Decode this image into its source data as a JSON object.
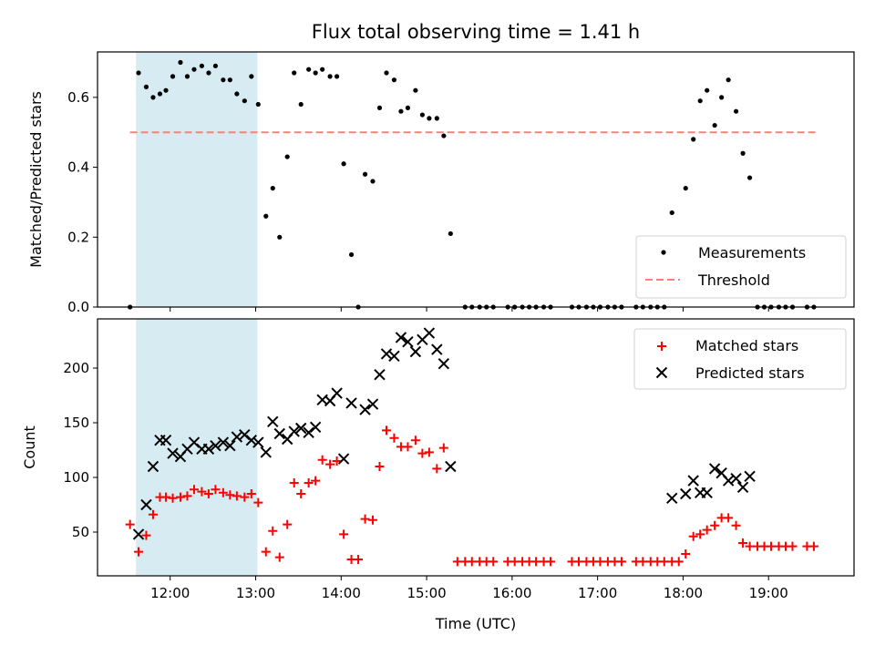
{
  "figure": {
    "title": "Flux total observing time = 1.41 h"
  },
  "chart_data": [
    {
      "type": "scatter",
      "panel": "top",
      "xlabel": "",
      "ylabel": "Matched/Predicted stars",
      "xlim_hours": [
        11.15,
        20.0
      ],
      "ylim": [
        0,
        0.73
      ],
      "yticks": [
        0.0,
        0.2,
        0.4,
        0.6
      ],
      "shaded_interval": [
        11.6,
        13.02
      ],
      "threshold": {
        "name": "Threshold",
        "y": 0.5,
        "x_range": [
          11.53,
          19.55
        ],
        "color": "#ff7f7f"
      },
      "legend": {
        "placement": "lower-right",
        "entries": [
          "Measurements",
          "Threshold"
        ]
      },
      "series": [
        {
          "name": "Measurements",
          "color": "#000000",
          "points": [
            [
              11.53,
              0.0
            ],
            [
              11.63,
              0.67
            ],
            [
              11.72,
              0.63
            ],
            [
              11.8,
              0.6
            ],
            [
              11.88,
              0.61
            ],
            [
              11.95,
              0.62
            ],
            [
              12.03,
              0.66
            ],
            [
              12.12,
              0.7
            ],
            [
              12.2,
              0.66
            ],
            [
              12.28,
              0.68
            ],
            [
              12.37,
              0.69
            ],
            [
              12.45,
              0.67
            ],
            [
              12.53,
              0.69
            ],
            [
              12.62,
              0.65
            ],
            [
              12.7,
              0.65
            ],
            [
              12.78,
              0.61
            ],
            [
              12.87,
              0.59
            ],
            [
              12.95,
              0.66
            ],
            [
              13.03,
              0.58
            ],
            [
              13.12,
              0.26
            ],
            [
              13.2,
              0.34
            ],
            [
              13.28,
              0.2
            ],
            [
              13.37,
              0.43
            ],
            [
              13.45,
              0.67
            ],
            [
              13.53,
              0.58
            ],
            [
              13.62,
              0.68
            ],
            [
              13.7,
              0.67
            ],
            [
              13.78,
              0.68
            ],
            [
              13.87,
              0.66
            ],
            [
              13.95,
              0.66
            ],
            [
              14.03,
              0.41
            ],
            [
              14.12,
              0.15
            ],
            [
              14.2,
              0.0
            ],
            [
              14.28,
              0.38
            ],
            [
              14.37,
              0.36
            ],
            [
              14.45,
              0.57
            ],
            [
              14.53,
              0.67
            ],
            [
              14.62,
              0.65
            ],
            [
              14.7,
              0.56
            ],
            [
              14.78,
              0.57
            ],
            [
              14.87,
              0.62
            ],
            [
              14.95,
              0.55
            ],
            [
              15.03,
              0.54
            ],
            [
              15.12,
              0.54
            ],
            [
              15.2,
              0.49
            ],
            [
              15.28,
              0.21
            ],
            [
              15.45,
              0.0
            ],
            [
              15.53,
              0.0
            ],
            [
              15.62,
              0.0
            ],
            [
              15.7,
              0.0
            ],
            [
              15.78,
              0.0
            ],
            [
              15.95,
              0.0
            ],
            [
              16.03,
              0.0
            ],
            [
              16.12,
              0.0
            ],
            [
              16.2,
              0.0
            ],
            [
              16.28,
              0.0
            ],
            [
              16.37,
              0.0
            ],
            [
              16.45,
              0.0
            ],
            [
              16.7,
              0.0
            ],
            [
              16.78,
              0.0
            ],
            [
              16.87,
              0.0
            ],
            [
              16.95,
              0.0
            ],
            [
              17.03,
              0.0
            ],
            [
              17.12,
              0.0
            ],
            [
              17.2,
              0.0
            ],
            [
              17.28,
              0.0
            ],
            [
              17.45,
              0.0
            ],
            [
              17.53,
              0.0
            ],
            [
              17.62,
              0.0
            ],
            [
              17.7,
              0.0
            ],
            [
              17.78,
              0.0
            ],
            [
              17.87,
              0.27
            ],
            [
              18.03,
              0.34
            ],
            [
              18.12,
              0.48
            ],
            [
              18.2,
              0.59
            ],
            [
              18.28,
              0.62
            ],
            [
              18.37,
              0.52
            ],
            [
              18.45,
              0.6
            ],
            [
              18.53,
              0.65
            ],
            [
              18.62,
              0.56
            ],
            [
              18.7,
              0.44
            ],
            [
              18.78,
              0.37
            ],
            [
              18.87,
              0.0
            ],
            [
              18.95,
              0.0
            ],
            [
              19.03,
              0.0
            ],
            [
              19.12,
              0.0
            ],
            [
              19.2,
              0.0
            ],
            [
              19.28,
              0.0
            ],
            [
              19.45,
              0.0
            ],
            [
              19.53,
              0.0
            ]
          ]
        }
      ]
    },
    {
      "type": "scatter",
      "panel": "bottom",
      "xlabel": "Time (UTC)",
      "ylabel": "Count",
      "xlim_hours": [
        11.15,
        20.0
      ],
      "ylim": [
        10,
        245
      ],
      "yticks": [
        50,
        100,
        150,
        200
      ],
      "xtick_labels": [
        "12:00",
        "13:00",
        "14:00",
        "15:00",
        "16:00",
        "17:00",
        "18:00",
        "19:00"
      ],
      "shaded_interval": [
        11.6,
        13.02
      ],
      "legend": {
        "placement": "upper-right",
        "entries": [
          "Matched stars",
          "Predicted stars"
        ]
      },
      "series": [
        {
          "name": "Matched stars",
          "marker": "plus",
          "color": "#ff0000",
          "points": [
            [
              11.53,
              57
            ],
            [
              11.63,
              32
            ],
            [
              11.72,
              47
            ],
            [
              11.8,
              66
            ],
            [
              11.88,
              82
            ],
            [
              11.95,
              82
            ],
            [
              12.03,
              81
            ],
            [
              12.12,
              82
            ],
            [
              12.2,
              83
            ],
            [
              12.28,
              89
            ],
            [
              12.37,
              87
            ],
            [
              12.45,
              85
            ],
            [
              12.53,
              89
            ],
            [
              12.62,
              86
            ],
            [
              12.7,
              84
            ],
            [
              12.78,
              83
            ],
            [
              12.87,
              82
            ],
            [
              12.95,
              85
            ],
            [
              13.03,
              77
            ],
            [
              13.12,
              32
            ],
            [
              13.2,
              51
            ],
            [
              13.28,
              27
            ],
            [
              13.37,
              57
            ],
            [
              13.45,
              95
            ],
            [
              13.53,
              85
            ],
            [
              13.62,
              95
            ],
            [
              13.7,
              97
            ],
            [
              13.78,
              116
            ],
            [
              13.87,
              112
            ],
            [
              13.95,
              115
            ],
            [
              14.03,
              48
            ],
            [
              14.12,
              25
            ],
            [
              14.2,
              25
            ],
            [
              14.28,
              62
            ],
            [
              14.37,
              61
            ],
            [
              14.45,
              110
            ],
            [
              14.53,
              143
            ],
            [
              14.62,
              136
            ],
            [
              14.7,
              128
            ],
            [
              14.78,
              128
            ],
            [
              14.87,
              134
            ],
            [
              14.95,
              122
            ],
            [
              15.03,
              123
            ],
            [
              15.12,
              108
            ],
            [
              15.2,
              127
            ],
            [
              15.36,
              23
            ],
            [
              15.45,
              23
            ],
            [
              15.53,
              23
            ],
            [
              15.62,
              23
            ],
            [
              15.7,
              23
            ],
            [
              15.78,
              23
            ],
            [
              15.95,
              23
            ],
            [
              16.03,
              23
            ],
            [
              16.12,
              23
            ],
            [
              16.2,
              23
            ],
            [
              16.28,
              23
            ],
            [
              16.37,
              23
            ],
            [
              16.45,
              23
            ],
            [
              16.7,
              23
            ],
            [
              16.78,
              23
            ],
            [
              16.87,
              23
            ],
            [
              16.95,
              23
            ],
            [
              17.03,
              23
            ],
            [
              17.12,
              23
            ],
            [
              17.2,
              23
            ],
            [
              17.28,
              23
            ],
            [
              17.45,
              23
            ],
            [
              17.53,
              23
            ],
            [
              17.62,
              23
            ],
            [
              17.7,
              23
            ],
            [
              17.78,
              23
            ],
            [
              17.87,
              23
            ],
            [
              17.95,
              23
            ],
            [
              18.03,
              30
            ],
            [
              18.12,
              46
            ],
            [
              18.2,
              48
            ],
            [
              18.28,
              52
            ],
            [
              18.37,
              56
            ],
            [
              18.45,
              63
            ],
            [
              18.53,
              63
            ],
            [
              18.62,
              56
            ],
            [
              18.7,
              40
            ],
            [
              18.78,
              37
            ],
            [
              18.87,
              37
            ],
            [
              18.95,
              37
            ],
            [
              19.03,
              37
            ],
            [
              19.12,
              37
            ],
            [
              19.2,
              37
            ],
            [
              19.28,
              37
            ],
            [
              19.45,
              37
            ],
            [
              19.53,
              37
            ]
          ]
        },
        {
          "name": "Predicted stars",
          "marker": "cross",
          "color": "#000000",
          "points": [
            [
              11.63,
              48
            ],
            [
              11.72,
              75
            ],
            [
              11.8,
              110
            ],
            [
              11.88,
              134
            ],
            [
              11.95,
              134
            ],
            [
              12.03,
              122
            ],
            [
              12.12,
              119
            ],
            [
              12.2,
              126
            ],
            [
              12.28,
              132
            ],
            [
              12.37,
              126
            ],
            [
              12.45,
              126
            ],
            [
              12.53,
              129
            ],
            [
              12.62,
              132
            ],
            [
              12.7,
              129
            ],
            [
              12.78,
              137
            ],
            [
              12.87,
              139
            ],
            [
              12.95,
              134
            ],
            [
              13.03,
              132
            ],
            [
              13.12,
              123
            ],
            [
              13.2,
              151
            ],
            [
              13.28,
              140
            ],
            [
              13.37,
              135
            ],
            [
              13.45,
              142
            ],
            [
              13.53,
              145
            ],
            [
              13.62,
              141
            ],
            [
              13.7,
              146
            ],
            [
              13.78,
              171
            ],
            [
              13.87,
              170
            ],
            [
              13.95,
              177
            ],
            [
              14.03,
              117
            ],
            [
              14.12,
              168
            ],
            [
              14.28,
              162
            ],
            [
              14.37,
              167
            ],
            [
              14.45,
              194
            ],
            [
              14.53,
              213
            ],
            [
              14.62,
              211
            ],
            [
              14.7,
              228
            ],
            [
              14.78,
              224
            ],
            [
              14.87,
              215
            ],
            [
              14.95,
              226
            ],
            [
              15.03,
              232
            ],
            [
              15.12,
              217
            ],
            [
              15.2,
              204
            ],
            [
              15.28,
              110
            ],
            [
              17.87,
              81
            ],
            [
              18.03,
              85
            ],
            [
              18.12,
              97
            ],
            [
              18.2,
              86
            ],
            [
              18.28,
              86
            ],
            [
              18.37,
              108
            ],
            [
              18.45,
              104
            ],
            [
              18.53,
              97
            ],
            [
              18.62,
              99
            ],
            [
              18.7,
              91
            ],
            [
              18.78,
              101
            ]
          ]
        }
      ]
    }
  ]
}
